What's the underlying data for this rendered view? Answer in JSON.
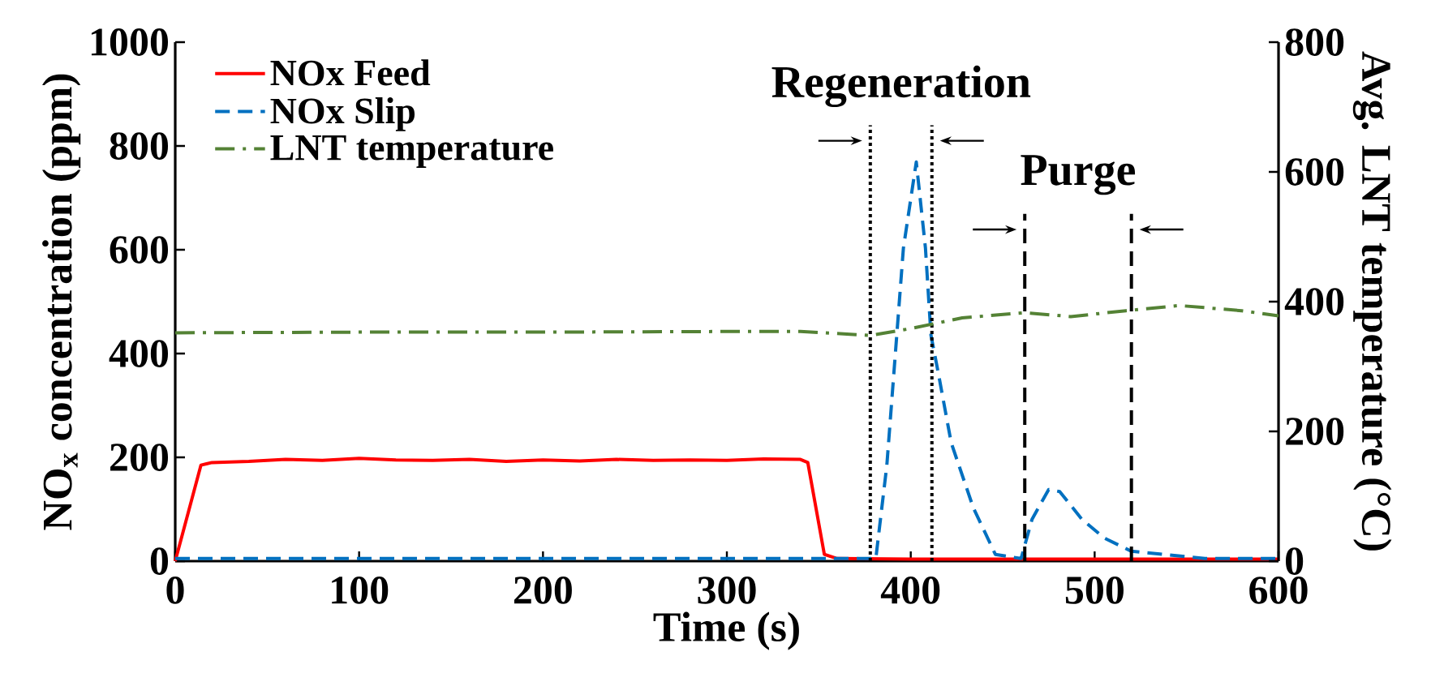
{
  "chart_data": {
    "type": "line",
    "xlabel": "Time (s)",
    "ylabel": "NO$_{x}$ concentration (ppm)",
    "y2label": "Avg. LNT temperature (°C)",
    "xlim": [
      0,
      600
    ],
    "xticks": [
      0,
      100,
      200,
      300,
      400,
      500,
      600
    ],
    "ylim": [
      0,
      1000
    ],
    "yticks": [
      0,
      200,
      400,
      600,
      800,
      1000
    ],
    "y2lim": [
      0,
      800
    ],
    "y2ticks": [
      0,
      200,
      400,
      600,
      800
    ],
    "grid": false,
    "legend": "top left",
    "marker": "none",
    "series": [
      {
        "name": "NOx Feed",
        "color": "#ff0000",
        "line_style": "solid",
        "x": [
          0,
          14,
          20,
          40,
          60,
          80,
          100,
          120,
          140,
          160,
          180,
          200,
          220,
          240,
          260,
          280,
          300,
          320,
          340,
          344,
          353,
          360,
          400,
          450,
          500,
          550,
          600
        ],
        "values": [
          0,
          185,
          190,
          192,
          196,
          194,
          198,
          195,
          194,
          196,
          192,
          195,
          193,
          196,
          194,
          195,
          194,
          197,
          196,
          190,
          13,
          5,
          4,
          4,
          4,
          4,
          4
        ]
      },
      {
        "name": "NOx Slip",
        "color": "#0070c0",
        "line_style": "dashed",
        "x": [
          0,
          100,
          200,
          300,
          378,
          381,
          387,
          396,
          403,
          408,
          411,
          415,
          422,
          434,
          446,
          460,
          466,
          475,
          481,
          493,
          505,
          520,
          560,
          600
        ],
        "values": [
          5,
          5,
          5,
          5,
          5,
          5,
          185,
          603,
          769,
          603,
          435,
          362,
          228,
          103,
          13,
          5,
          81,
          138,
          134,
          81,
          45,
          19,
          5,
          5
        ]
      },
      {
        "name": "LNT temperature",
        "color": "#548235",
        "line_style": "dashdot",
        "axis": "y2",
        "x": [
          0,
          100,
          200,
          300,
          340,
          378,
          399,
          428,
          462,
          487,
          517,
          546,
          580,
          600
        ],
        "values": [
          352,
          353,
          353,
          354,
          354,
          348,
          358,
          375,
          383,
          377,
          386,
          394,
          386,
          378
        ]
      }
    ],
    "ref_lines": [
      {
        "axis": "x",
        "value": 378,
        "color": "#000000",
        "line_style": "dotted"
      },
      {
        "axis": "x",
        "value": 411.5,
        "color": "#000000",
        "line_style": "dotted"
      },
      {
        "axis": "x",
        "value": 462,
        "color": "#000000",
        "line_style": "dashed"
      },
      {
        "axis": "x",
        "value": 520,
        "color": "#000000",
        "line_style": "dashed"
      }
    ],
    "annotations": [
      "Regeneration",
      "Purge"
    ]
  }
}
